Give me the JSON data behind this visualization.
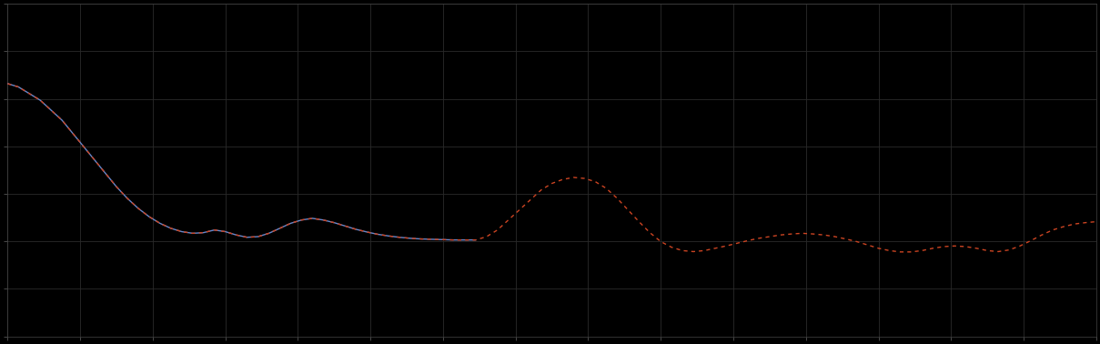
{
  "background_color": "#000000",
  "plot_bg_color": "#000000",
  "grid_color": "#2a2a2a",
  "line1_color": "#6688cc",
  "line2_color": "#cc4422",
  "tick_color": "#666666",
  "spine_color": "#444444",
  "figsize": [
    12.09,
    3.78
  ],
  "dpi": 100,
  "xlim": [
    0,
    100
  ],
  "ylim": [
    0,
    10
  ],
  "n_xticks": 15,
  "n_yticks": 7,
  "line1_x": [
    0,
    1,
    2,
    3,
    4,
    5,
    6,
    7,
    8,
    9,
    10,
    11,
    12,
    13,
    14,
    15,
    16,
    17,
    18,
    19,
    20,
    21,
    22,
    23,
    24,
    25,
    26,
    27,
    28,
    29,
    30,
    31,
    32,
    33,
    34,
    35,
    36,
    37,
    38,
    39,
    40,
    41,
    42,
    43
  ],
  "line1_y": [
    7.6,
    7.5,
    7.3,
    7.1,
    6.8,
    6.5,
    6.1,
    5.7,
    5.3,
    4.9,
    4.5,
    4.15,
    3.85,
    3.6,
    3.4,
    3.25,
    3.15,
    3.1,
    3.12,
    3.2,
    3.15,
    3.05,
    2.98,
    3.0,
    3.1,
    3.25,
    3.4,
    3.5,
    3.55,
    3.5,
    3.42,
    3.32,
    3.22,
    3.14,
    3.07,
    3.02,
    2.98,
    2.95,
    2.93,
    2.92,
    2.91,
    2.9,
    2.9,
    2.9
  ],
  "line2_x": [
    0,
    1,
    2,
    3,
    4,
    5,
    6,
    7,
    8,
    9,
    10,
    11,
    12,
    13,
    14,
    15,
    16,
    17,
    18,
    19,
    20,
    21,
    22,
    23,
    24,
    25,
    26,
    27,
    28,
    29,
    30,
    31,
    32,
    33,
    34,
    35,
    36,
    37,
    38,
    39,
    40,
    41,
    42,
    43,
    44,
    45,
    46,
    47,
    48,
    49,
    50,
    51,
    52,
    53,
    54,
    55,
    56,
    57,
    58,
    59,
    60,
    61,
    62,
    63,
    64,
    65,
    66,
    67,
    68,
    69,
    70,
    71,
    72,
    73,
    74,
    75,
    76,
    77,
    78,
    79,
    80,
    81,
    82,
    83,
    84,
    85,
    86,
    87,
    88,
    89,
    90,
    91,
    92,
    93,
    94,
    95,
    96,
    97,
    98,
    99,
    100
  ],
  "line2_y": [
    7.6,
    7.5,
    7.3,
    7.1,
    6.8,
    6.5,
    6.1,
    5.7,
    5.3,
    4.9,
    4.5,
    4.15,
    3.85,
    3.6,
    3.4,
    3.25,
    3.15,
    3.1,
    3.12,
    3.2,
    3.15,
    3.05,
    2.98,
    3.0,
    3.1,
    3.25,
    3.4,
    3.5,
    3.55,
    3.5,
    3.42,
    3.32,
    3.22,
    3.14,
    3.07,
    3.02,
    2.98,
    2.95,
    2.93,
    2.92,
    2.91,
    2.9,
    2.9,
    2.9,
    3.0,
    3.2,
    3.5,
    3.8,
    4.1,
    4.4,
    4.6,
    4.72,
    4.78,
    4.75,
    4.65,
    4.45,
    4.15,
    3.8,
    3.45,
    3.12,
    2.85,
    2.68,
    2.58,
    2.55,
    2.58,
    2.65,
    2.72,
    2.8,
    2.88,
    2.95,
    3.0,
    3.05,
    3.08,
    3.1,
    3.08,
    3.05,
    3.0,
    2.93,
    2.85,
    2.75,
    2.65,
    2.58,
    2.54,
    2.54,
    2.58,
    2.65,
    2.7,
    2.72,
    2.7,
    2.65,
    2.58,
    2.55,
    2.6,
    2.72,
    2.88,
    3.05,
    3.2,
    3.3,
    3.38,
    3.42,
    3.45
  ]
}
